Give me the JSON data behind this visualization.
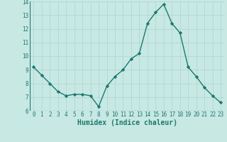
{
  "x": [
    0,
    1,
    2,
    3,
    4,
    5,
    6,
    7,
    8,
    9,
    10,
    11,
    12,
    13,
    14,
    15,
    16,
    17,
    18,
    19,
    20,
    21,
    22,
    23
  ],
  "y": [
    9.2,
    8.6,
    8.0,
    7.4,
    7.1,
    7.2,
    7.2,
    7.1,
    6.3,
    7.8,
    8.5,
    9.0,
    9.8,
    10.2,
    12.4,
    13.2,
    13.8,
    12.4,
    11.7,
    9.2,
    8.5,
    7.7,
    7.1,
    6.6
  ],
  "xlabel": "Humidex (Indice chaleur)",
  "ylim": [
    6,
    14
  ],
  "xlim": [
    -0.5,
    23.5
  ],
  "yticks": [
    6,
    7,
    8,
    9,
    10,
    11,
    12,
    13,
    14
  ],
  "xticks": [
    0,
    1,
    2,
    3,
    4,
    5,
    6,
    7,
    8,
    9,
    10,
    11,
    12,
    13,
    14,
    15,
    16,
    17,
    18,
    19,
    20,
    21,
    22,
    23
  ],
  "line_color": "#1a7a6e",
  "marker_color": "#1a7a6e",
  "bg_color": "#c8e8e4",
  "grid_color": "#acd4cf",
  "axis_label_color": "#1a7a6e",
  "tick_label_color": "#1a7a6e",
  "tick_fontsize": 5.5,
  "xlabel_fontsize": 7.0,
  "linewidth": 1.0,
  "markersize": 2.2
}
